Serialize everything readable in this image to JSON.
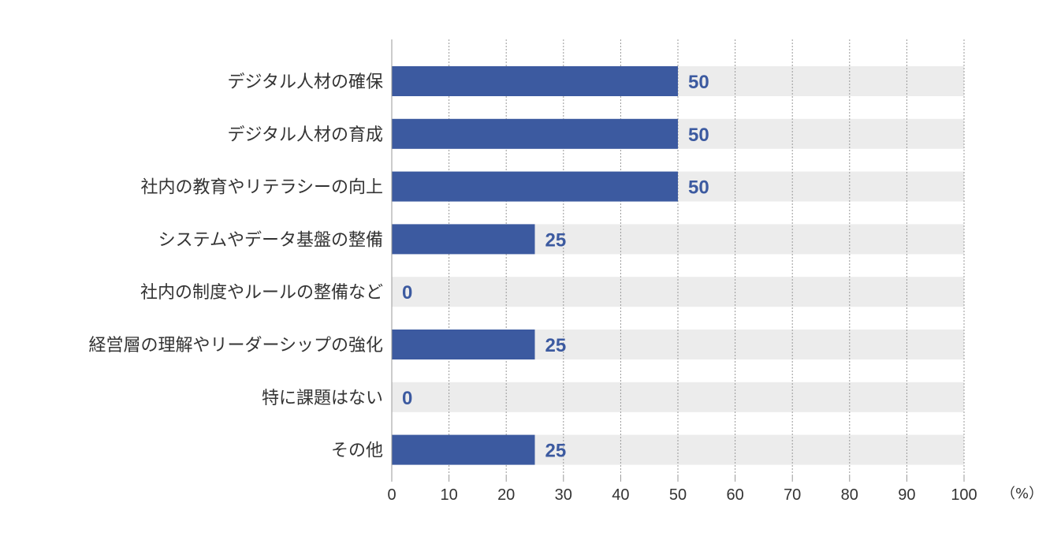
{
  "chart_data": {
    "type": "bar",
    "orientation": "horizontal",
    "categories": [
      "デジタル人材の確保",
      "デジタル人材の育成",
      "社内の教育やリテラシーの向上",
      "システムやデータ基盤の整備",
      "社内の制度やルールの整備など",
      "経営層の理解やリーダーシップの強化",
      "特に課題はない",
      "その他"
    ],
    "values": [
      50,
      50,
      50,
      25,
      0,
      25,
      0,
      25
    ],
    "value_labels": [
      "50",
      "50",
      "50",
      "25",
      "0",
      "25",
      "0",
      "25"
    ],
    "xlim": [
      0,
      100
    ],
    "x_ticks": [
      "0",
      "10",
      "20",
      "30",
      "40",
      "50",
      "60",
      "70",
      "80",
      "90",
      "100"
    ],
    "unit": "（%）",
    "grid": true,
    "colors": {
      "bar": "#3c5aa0",
      "track": "#ececec",
      "grid": "#999999",
      "value_text": "#3c5aa0"
    }
  }
}
